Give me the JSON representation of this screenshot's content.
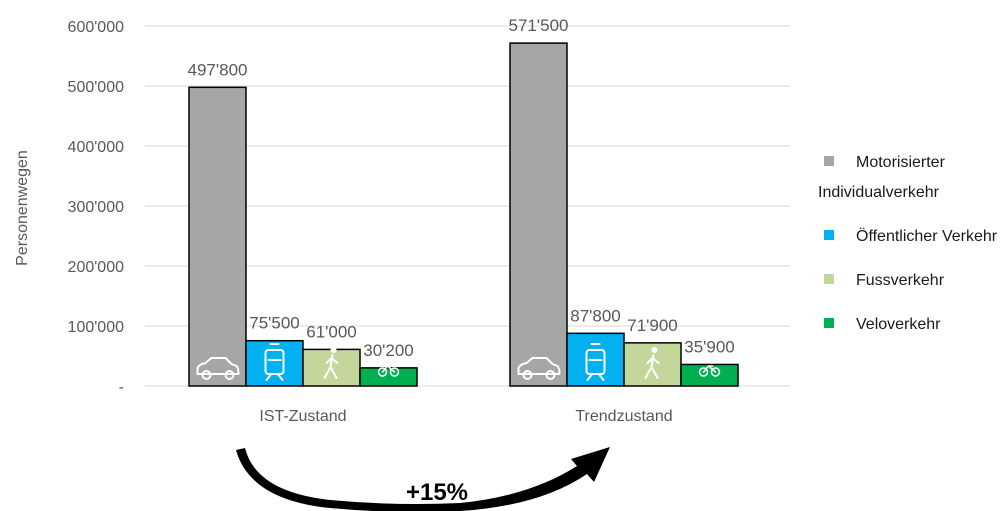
{
  "chart_data": {
    "type": "bar",
    "ylabel": "Personenwegen",
    "ylim": [
      0,
      600000
    ],
    "y_ticks": [
      "-",
      "100'000",
      "200'000",
      "300'000",
      "400'000",
      "500'000",
      "600'000"
    ],
    "categories": [
      "IST-Zustand",
      "Trendzustand"
    ],
    "series": [
      {
        "name": "Motorisierter Individualverkehr",
        "color": "#a6a6a6",
        "icon": "car-icon",
        "values": [
          497800,
          571500
        ],
        "labels": [
          "497'800",
          "571'500"
        ]
      },
      {
        "name": "Öffentlicher Verkehr",
        "color": "#00b0f0",
        "icon": "tram-icon",
        "values": [
          75500,
          87800
        ],
        "labels": [
          "75'500",
          "87'800"
        ]
      },
      {
        "name": "Fussverkehr",
        "color": "#c4d79b",
        "icon": "pedestrian-icon",
        "values": [
          61000,
          71900
        ],
        "labels": [
          "61'000",
          "71'900"
        ]
      },
      {
        "name": "Veloverkehr",
        "color": "#00b050",
        "icon": "bicycle-icon",
        "values": [
          30200,
          35900
        ],
        "labels": [
          "30'200",
          "35'900"
        ]
      }
    ],
    "legend_position": "right",
    "grid": true,
    "annotation": {
      "text": "+15%",
      "icon": "curved-arrow-icon"
    }
  }
}
